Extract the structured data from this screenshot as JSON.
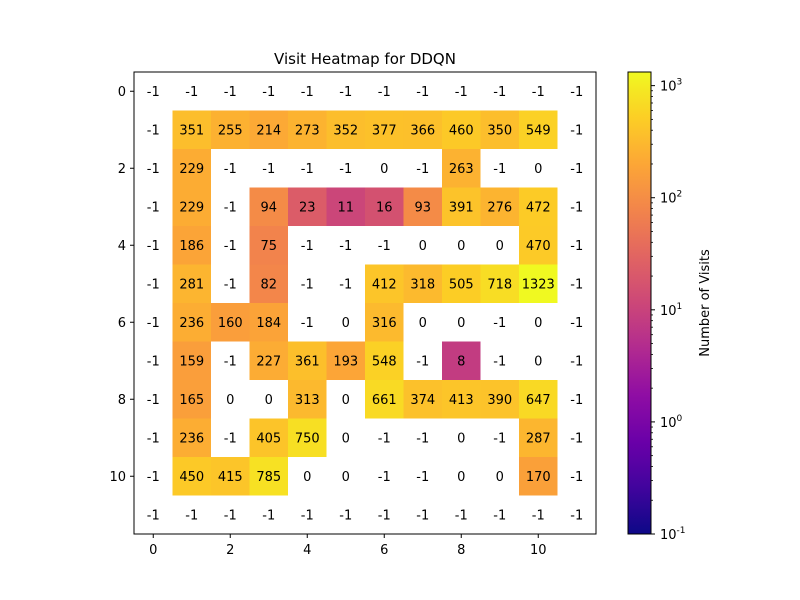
{
  "chart_data": {
    "type": "heatmap",
    "title": "Visit Heatmap for DDQN",
    "xlabel": "",
    "ylabel": "",
    "x_ticks": [
      0,
      2,
      4,
      6,
      8,
      10
    ],
    "y_ticks": [
      0,
      2,
      4,
      6,
      8,
      10
    ],
    "x_range": [
      -0.5,
      11.5
    ],
    "y_range": [
      -0.5,
      11.5
    ],
    "grid": false,
    "colormap": "plasma",
    "color_scale": "log",
    "empty_cell_color": "#ffffff",
    "rows": [
      [
        -1,
        -1,
        -1,
        -1,
        -1,
        -1,
        -1,
        -1,
        -1,
        -1,
        -1,
        -1
      ],
      [
        -1,
        351,
        255,
        214,
        273,
        352,
        377,
        366,
        460,
        350,
        549,
        -1
      ],
      [
        -1,
        229,
        -1,
        -1,
        -1,
        -1,
        0,
        -1,
        263,
        -1,
        0,
        -1
      ],
      [
        -1,
        229,
        -1,
        94,
        23,
        11,
        16,
        93,
        391,
        276,
        472,
        -1
      ],
      [
        -1,
        186,
        -1,
        75,
        -1,
        -1,
        -1,
        0,
        0,
        0,
        470,
        -1
      ],
      [
        -1,
        281,
        -1,
        82,
        -1,
        -1,
        412,
        318,
        505,
        718,
        1323,
        -1
      ],
      [
        -1,
        236,
        160,
        184,
        -1,
        0,
        316,
        0,
        0,
        -1,
        0,
        -1
      ],
      [
        -1,
        159,
        -1,
        227,
        361,
        193,
        548,
        -1,
        8,
        -1,
        0,
        -1
      ],
      [
        -1,
        165,
        0,
        0,
        313,
        0,
        661,
        374,
        413,
        390,
        647,
        -1
      ],
      [
        -1,
        236,
        -1,
        405,
        750,
        0,
        -1,
        -1,
        0,
        -1,
        287,
        -1
      ],
      [
        -1,
        450,
        415,
        785,
        0,
        0,
        -1,
        -1,
        0,
        0,
        170,
        -1
      ],
      [
        -1,
        -1,
        -1,
        -1,
        -1,
        -1,
        -1,
        -1,
        -1,
        -1,
        -1,
        -1
      ]
    ],
    "colorbar": {
      "label": "Number of Visits",
      "range": [
        0.1,
        1323
      ],
      "tick_values": [
        0.1,
        1,
        10,
        100,
        1000
      ],
      "tick_exponents": [
        "-1",
        "0",
        "1",
        "2",
        "3"
      ],
      "tick_base": "10"
    }
  }
}
